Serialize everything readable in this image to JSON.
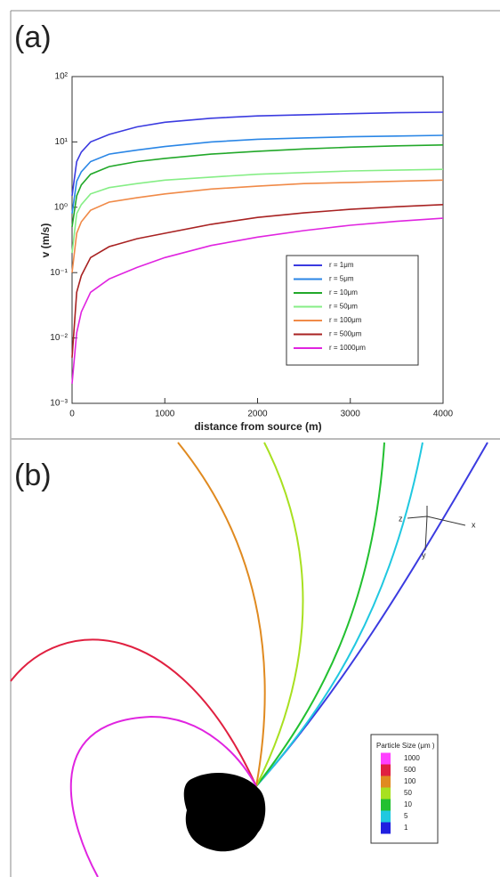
{
  "panel_a_label": "(a)",
  "chart_data": {
    "type": "line",
    "x_label": "distance from source (m)",
    "y_label": "v (m/s)",
    "x": [
      0,
      50,
      100,
      200,
      400,
      700,
      1000,
      1500,
      2000,
      2500,
      3000,
      3500,
      4000
    ],
    "series": [
      {
        "name": "r = 1μm",
        "color": "#3b3be0",
        "values": [
          1.5,
          5,
          7,
          10,
          13,
          17,
          20,
          23,
          25,
          26,
          27,
          28,
          28.5
        ]
      },
      {
        "name": "r = 5μm",
        "color": "#2a86e6",
        "values": [
          0.8,
          2.5,
          3.5,
          5,
          6.5,
          7.5,
          8.5,
          10,
          11,
          11.5,
          12,
          12.3,
          12.6
        ]
      },
      {
        "name": "r = 10μm",
        "color": "#22a82a",
        "values": [
          0.5,
          1.5,
          2.2,
          3.2,
          4.2,
          5,
          5.6,
          6.5,
          7.2,
          7.8,
          8.3,
          8.7,
          9
        ]
      },
      {
        "name": "r = 50μm",
        "color": "#86ee86",
        "values": [
          0.2,
          0.8,
          1.1,
          1.6,
          2,
          2.3,
          2.6,
          2.9,
          3.2,
          3.4,
          3.6,
          3.7,
          3.8
        ]
      },
      {
        "name": "r = 100μm",
        "color": "#f08a48",
        "values": [
          0.1,
          0.4,
          0.6,
          0.9,
          1.2,
          1.4,
          1.6,
          1.9,
          2.1,
          2.3,
          2.4,
          2.5,
          2.6
        ]
      },
      {
        "name": "r = 500μm",
        "color": "#a82222",
        "values": [
          0.005,
          0.05,
          0.09,
          0.17,
          0.25,
          0.33,
          0.4,
          0.55,
          0.7,
          0.82,
          0.93,
          1.02,
          1.1
        ]
      },
      {
        "name": "r = 1000μm",
        "color": "#e024e0",
        "values": [
          0.002,
          0.012,
          0.025,
          0.05,
          0.08,
          0.12,
          0.17,
          0.26,
          0.35,
          0.44,
          0.53,
          0.61,
          0.68
        ]
      }
    ],
    "xlim": [
      0,
      4000
    ],
    "xticks": [
      0,
      1000,
      2000,
      3000,
      4000
    ],
    "ylim": [
      0.001,
      100
    ],
    "ylog": true,
    "yticks": [
      {
        "value": 0.001,
        "label": "10⁻³"
      },
      {
        "value": 0.01,
        "label": "10⁻²"
      },
      {
        "value": 0.1,
        "label": "10⁻¹"
      },
      {
        "value": 1,
        "label": "10⁰"
      },
      {
        "value": 10,
        "label": "10¹"
      },
      {
        "value": 100,
        "label": "10²"
      }
    ],
    "legend": "lower right"
  },
  "panel_b": {
    "label": "(b)",
    "colorbar": {
      "title": "Particle Size (μm )",
      "labels": [
        "1000",
        "500",
        "100",
        "50",
        "10",
        "5",
        "1"
      ]
    },
    "triad": {
      "x": "x",
      "y": "y",
      "z": "z"
    }
  }
}
